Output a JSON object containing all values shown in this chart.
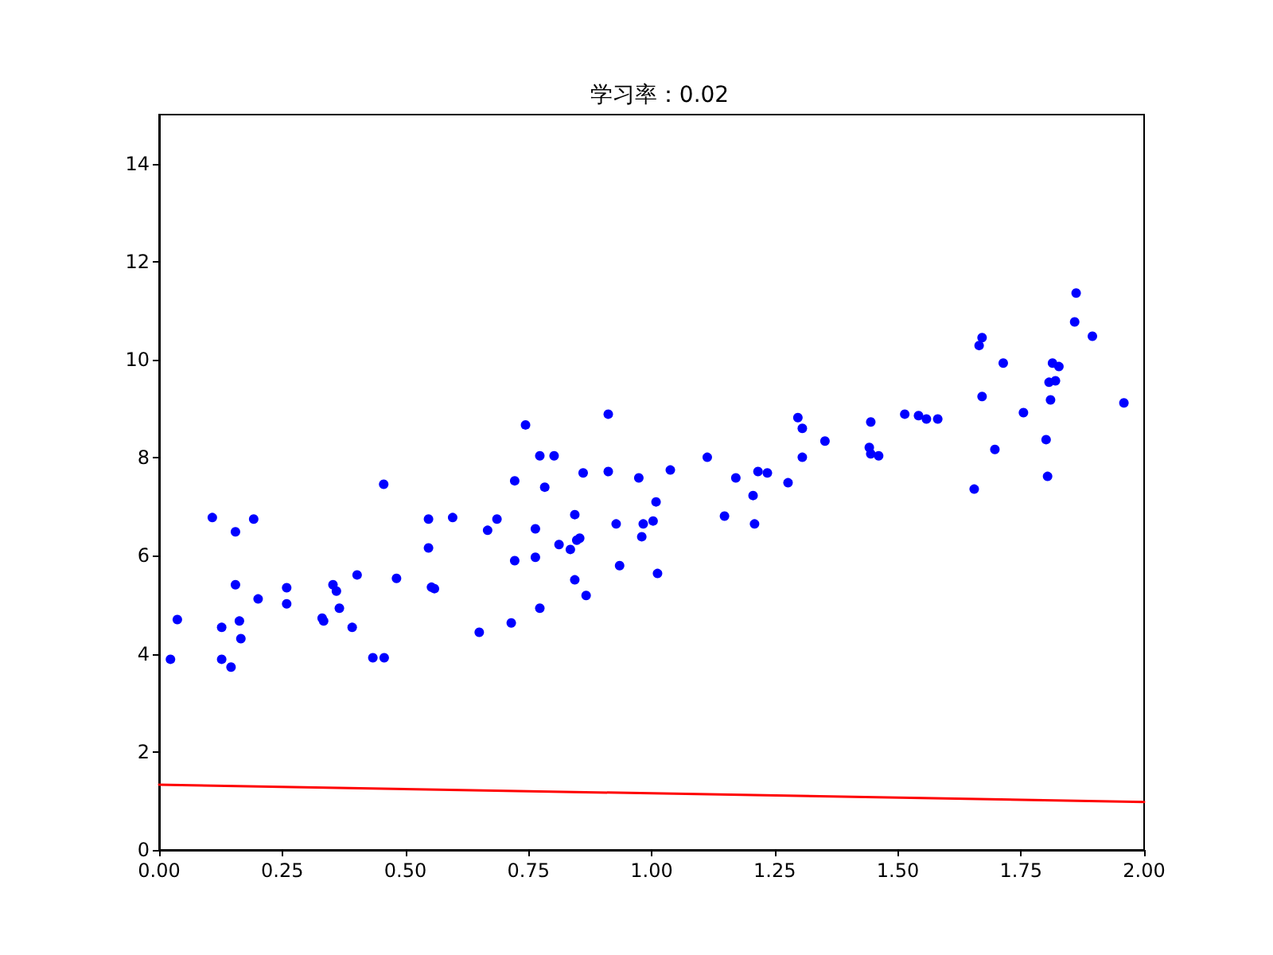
{
  "chart_data": {
    "type": "scatter",
    "title": "学习率：0.02",
    "xlim": [
      0,
      2
    ],
    "xticks": [
      {
        "value": 0,
        "label": "0.00"
      },
      {
        "value": 0.25,
        "label": "0.25"
      },
      {
        "value": 0.5,
        "label": "0.50"
      },
      {
        "value": 0.75,
        "label": "0.75"
      },
      {
        "value": 1,
        "label": "1.00"
      },
      {
        "value": 1.25,
        "label": "1.25"
      },
      {
        "value": 1.5,
        "label": "1.50"
      },
      {
        "value": 1.75,
        "label": "1.75"
      },
      {
        "value": 2,
        "label": "2.00"
      }
    ],
    "ylim": [
      0,
      15
    ],
    "yticks": [
      0,
      2,
      4,
      6,
      8,
      10,
      12,
      14
    ],
    "series": [
      {
        "color": "#0000ff",
        "marker": "circle",
        "x": [
          0.023,
          0.037,
          0.108,
          0.127,
          0.127,
          0.146,
          0.155,
          0.155,
          0.163,
          0.166,
          0.192,
          0.201,
          0.259,
          0.259,
          0.331,
          0.334,
          0.353,
          0.36,
          0.366,
          0.392,
          0.402,
          0.434,
          0.457,
          0.456,
          0.482,
          0.912,
          0.744,
          0.773,
          0.802,
          0.722,
          0.783,
          0.861,
          0.912,
          0.974,
          1.038,
          1.009,
          0.547,
          0.596,
          0.686,
          0.667,
          0.844,
          0.764,
          0.928,
          0.983,
          1.003,
          0.98,
          0.547,
          0.812,
          0.835,
          0.848,
          0.854,
          0.764,
          0.722,
          0.935,
          1.012,
          0.553,
          0.559,
          0.844,
          0.867,
          0.773,
          0.715,
          0.65,
          1.113,
          1.171,
          1.216,
          1.235,
          1.206,
          1.148,
          1.209,
          1.277,
          1.297,
          1.306,
          1.306,
          1.352,
          1.445,
          1.442,
          1.445,
          1.461,
          1.514,
          1.862,
          1.859,
          1.895,
          1.671,
          1.665,
          1.714,
          1.814,
          1.827,
          1.807,
          1.82,
          1.81,
          1.671,
          1.959,
          1.542,
          1.558,
          1.581,
          1.755,
          1.801,
          1.697,
          1.804,
          1.655
        ],
        "values": [
          3.89,
          4.7,
          6.78,
          4.54,
          3.89,
          3.73,
          6.49,
          5.41,
          4.67,
          4.31,
          6.75,
          5.12,
          5.35,
          5.02,
          4.73,
          4.67,
          5.41,
          5.28,
          4.93,
          4.54,
          5.61,
          3.92,
          3.92,
          7.46,
          5.54,
          8.89,
          8.67,
          8.04,
          8.04,
          7.53,
          7.4,
          7.69,
          7.72,
          7.59,
          7.75,
          7.1,
          6.75,
          6.78,
          6.75,
          6.52,
          6.84,
          6.55,
          6.65,
          6.65,
          6.71,
          6.39,
          6.16,
          6.23,
          6.13,
          6.32,
          6.36,
          5.97,
          5.9,
          5.8,
          5.64,
          5.36,
          5.33,
          5.51,
          5.19,
          4.93,
          4.63,
          4.44,
          8.01,
          7.59,
          7.72,
          7.69,
          7.23,
          6.81,
          6.65,
          7.49,
          8.82,
          8.6,
          8.01,
          8.34,
          8.73,
          8.21,
          8.08,
          8.04,
          8.89,
          11.36,
          10.77,
          10.48,
          10.45,
          10.29,
          9.93,
          9.93,
          9.86,
          9.54,
          9.57,
          9.18,
          9.25,
          9.12,
          8.86,
          8.79,
          8.79,
          8.92,
          8.37,
          8.17,
          7.62,
          7.36
        ]
      },
      {
        "type": "line",
        "color": "#ff0000",
        "marker": "none",
        "line_style": "solid",
        "x": [
          0,
          2
        ],
        "values": [
          1.33,
          0.98
        ]
      }
    ]
  }
}
